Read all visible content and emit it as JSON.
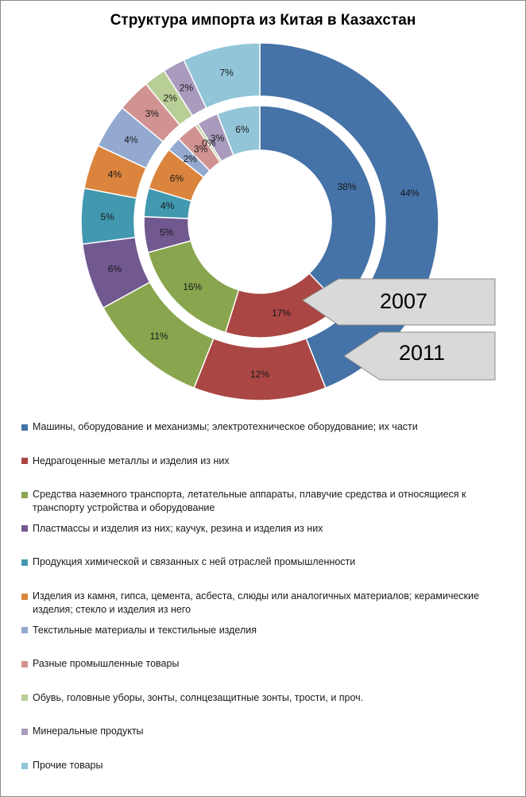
{
  "chart_data": {
    "type": "donut",
    "title": "Структура импорта из Китая в Казахстан",
    "categories": [
      "Машины, оборудование и механизмы; электротехническое оборудование; их части",
      "Недрагоценные металлы и изделия из них",
      "Средства наземного транспорта, летательные аппараты, плавучие средства и относящиеся к транспорту устройства и оборудование",
      "Пластмассы и изделия из них; каучук, резина и  изделия из них",
      "Продукция химической и связанных с ней отраслей промышленности",
      "Изделия из камня, гипса, цемента, асбеста, слюды или аналогичных материалов; керамические изделия; стекло и изделия из него",
      "Текстильные материалы и текстильные изделия",
      "Разные промышленные товары",
      "Обувь, головные уборы, зонты, солнцезащитные зонты, трости, и проч.",
      "Минеральные продукты",
      "Прочие товары"
    ],
    "colors": [
      "#4572a7",
      "#aa4643",
      "#89a54e",
      "#71588f",
      "#4198af",
      "#db843d",
      "#93a9cf",
      "#d19392",
      "#b9cd96",
      "#a99bbd",
      "#92c5d8"
    ],
    "series": [
      {
        "name": "2007",
        "ring": "inner",
        "values": [
          38,
          17,
          16,
          5,
          4,
          6,
          2,
          3,
          0.4,
          3,
          6
        ],
        "labels": [
          "38%",
          "17%",
          "16%",
          "5%",
          "4%",
          "6%",
          "2%",
          "3%",
          "0%",
          "3%",
          "6%"
        ]
      },
      {
        "name": "2011",
        "ring": "outer",
        "values": [
          44,
          12,
          11,
          6,
          5,
          4,
          4,
          3,
          2,
          2,
          7
        ],
        "labels": [
          "44%",
          "12%",
          "11%",
          "6%",
          "5%",
          "4%",
          "4%",
          "3%",
          "2%",
          "2%",
          "7%"
        ]
      }
    ],
    "legend_position": "bottom"
  },
  "callouts": [
    {
      "label": "2007"
    },
    {
      "label": "2011"
    }
  ]
}
